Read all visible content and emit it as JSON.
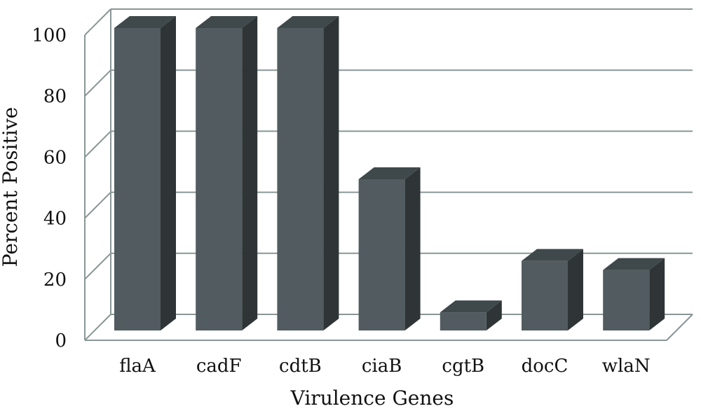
{
  "chart_data": {
    "type": "bar",
    "style": "3d-column",
    "categories": [
      "flaA",
      "cadF",
      "cdtB",
      "ciaB",
      "cgtB",
      "docC",
      "wlaN"
    ],
    "values": [
      100,
      100,
      100,
      50,
      6,
      23,
      20
    ],
    "title": "",
    "xlabel": "Virulence Genes",
    "ylabel": "Percent Positive",
    "ylim": [
      0,
      100
    ],
    "yticks": [
      0,
      20,
      40,
      60,
      80,
      100
    ],
    "grid": true,
    "legend": "none",
    "colors": {
      "bar_front": "#525c60",
      "bar_side": "#2f3537",
      "bar_top": "#3f484b",
      "grid": "#8a9696"
    }
  }
}
